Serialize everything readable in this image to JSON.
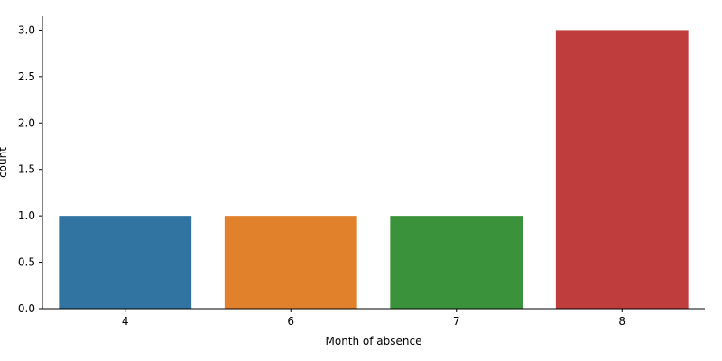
{
  "chart_data": {
    "type": "bar",
    "categories": [
      "4",
      "6",
      "7",
      "8"
    ],
    "values": [
      1,
      1,
      1,
      3
    ],
    "colors": [
      "#3274a1",
      "#e1812c",
      "#3a923a",
      "#c03d3e"
    ],
    "xlabel": "Month of absence",
    "ylabel": "count",
    "ylim": [
      0,
      3.15
    ],
    "yticks": [
      0.0,
      0.5,
      1.0,
      1.5,
      2.0,
      2.5,
      3.0
    ],
    "ytick_labels": [
      "0.0",
      "0.5",
      "1.0",
      "1.5",
      "2.0",
      "2.5",
      "3.0"
    ],
    "grid": false,
    "spines": [
      "left",
      "bottom"
    ]
  }
}
